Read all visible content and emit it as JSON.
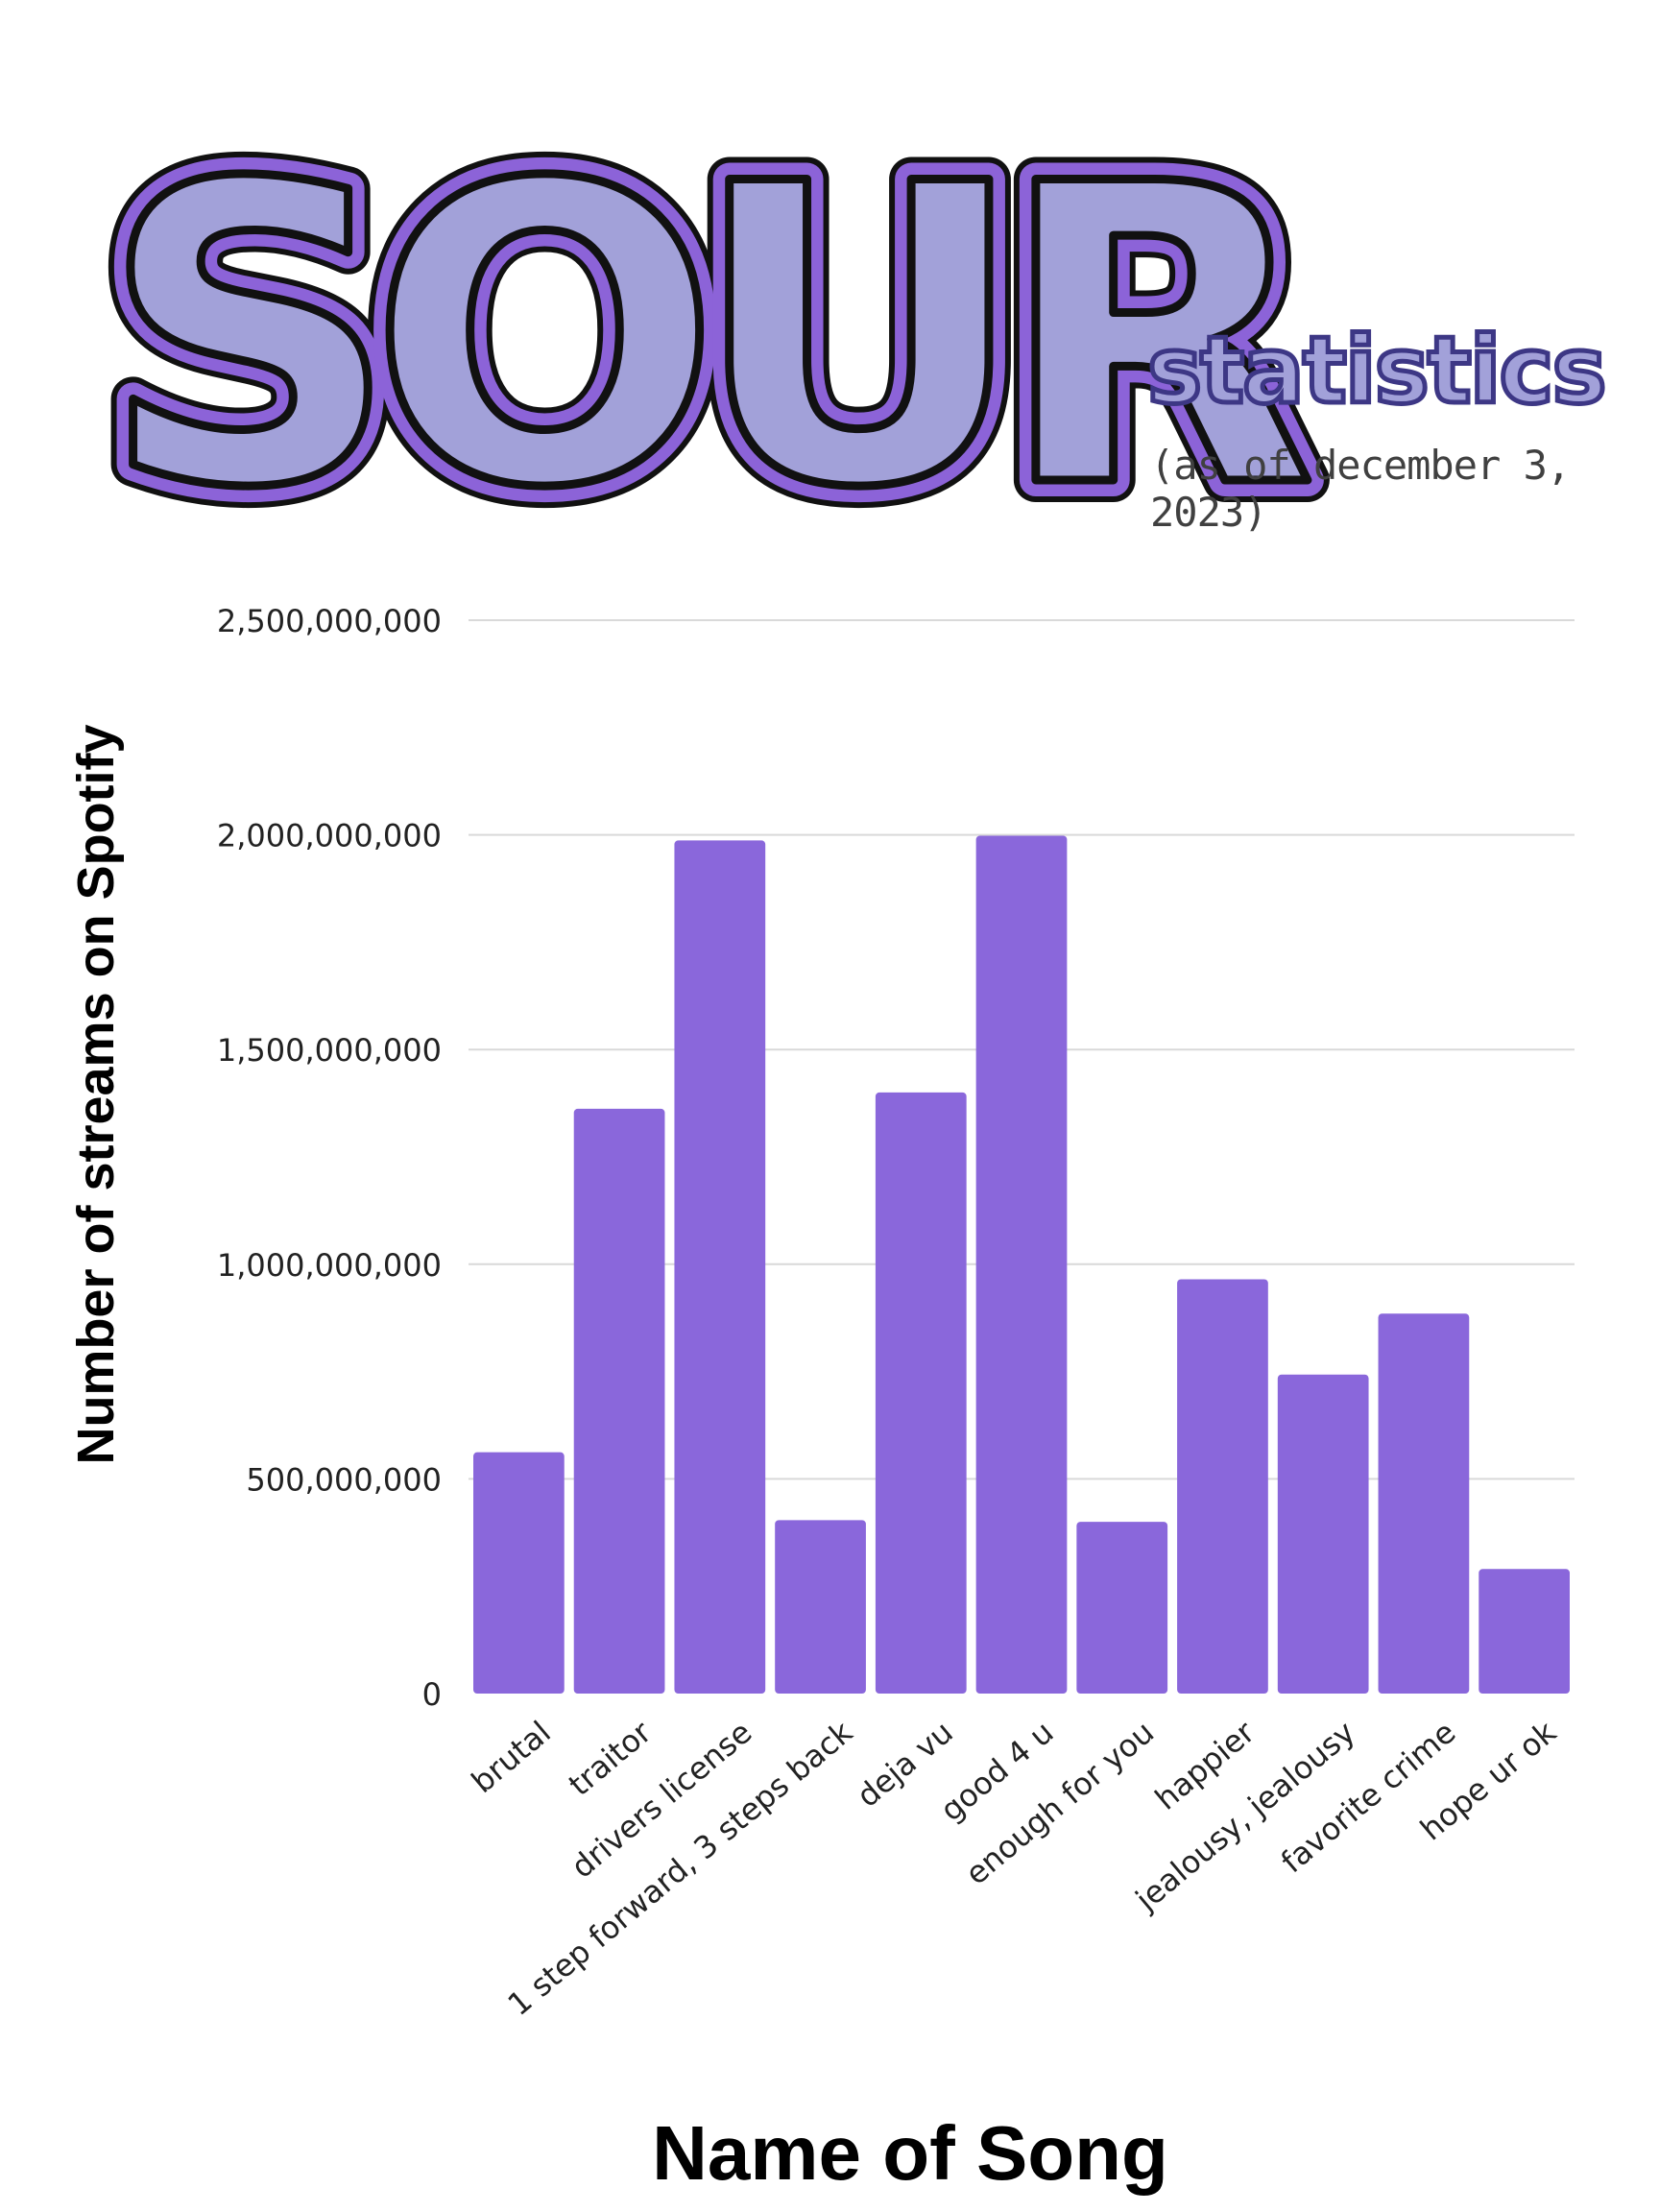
{
  "header": {
    "logo_text": "SOUR",
    "subtitle": "statistics",
    "date_note": "(as of december 3, 2023)"
  },
  "colors": {
    "bar": "#8a67db",
    "grid": "#d9d9d9",
    "logo_outer": "#8c63d8",
    "logo_inner": "#a2a1d9",
    "outline": "#111111"
  },
  "chart_data": {
    "type": "bar",
    "categories": [
      "brutal",
      "traitor",
      "drivers license",
      "1 step forward, 3 steps back",
      "deja vu",
      "good 4 u",
      "enough for you",
      "happier",
      "jealousy, jealousy",
      "favorite crime",
      "hope ur ok"
    ],
    "values": [
      562000000,
      1362000000,
      1987000000,
      404000000,
      1400000000,
      1998000000,
      400000000,
      965000000,
      743000000,
      885000000,
      290000000
    ],
    "xlabel": "Name of Song",
    "ylabel": "Number of streams on Spotify",
    "ylim": [
      0,
      2500000000
    ],
    "yticks": [
      0,
      500000000,
      1000000000,
      1500000000,
      2000000000,
      2500000000
    ],
    "ytick_labels": [
      "0",
      "500,000,000",
      "1,000,000,000",
      "1,500,000,000",
      "2,000,000,000",
      "2,500,000,000"
    ],
    "grid": true,
    "legend": "none"
  }
}
